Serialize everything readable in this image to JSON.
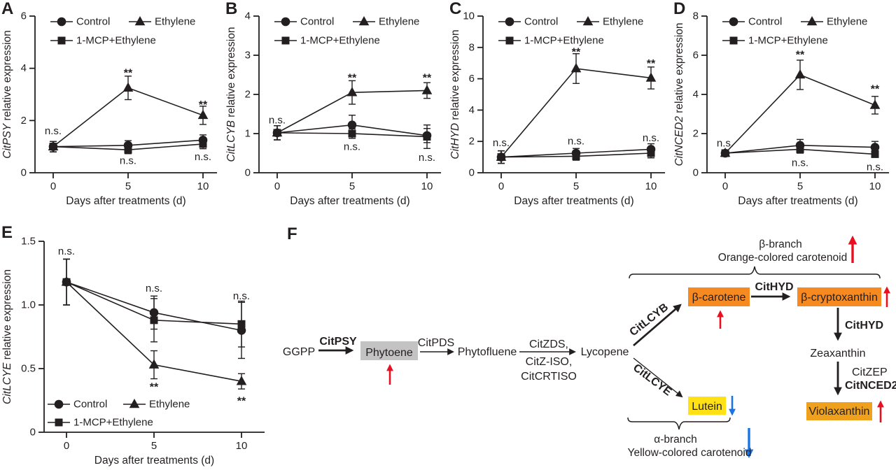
{
  "figure": {
    "background": "#ffffff",
    "panels": [
      "A",
      "B",
      "C",
      "D",
      "E",
      "F"
    ]
  },
  "chart_data": [
    {
      "panel": "A",
      "type": "line",
      "gene": "CitPSY",
      "ylabel_suffix": " relative expression",
      "xlabel": "Days after treatments (d)",
      "x": [
        0,
        5,
        10
      ],
      "ylim": [
        0,
        6
      ],
      "yticks": [
        0,
        2,
        4,
        6
      ],
      "ytick_labels": [
        "0",
        "2",
        "4",
        "6"
      ],
      "legend_pos": "top",
      "series": [
        {
          "name": "Control",
          "marker": "circle",
          "values": [
            1.0,
            1.05,
            1.25
          ],
          "errors": [
            0.2,
            0.18,
            0.2
          ]
        },
        {
          "name": "Ethylene",
          "marker": "triangle",
          "values": [
            1.0,
            3.25,
            2.2
          ],
          "errors": [
            0.2,
            0.45,
            0.35
          ]
        },
        {
          "name": "1-MCP+Ethylene",
          "marker": "square",
          "values": [
            1.0,
            0.88,
            1.1
          ],
          "errors": [
            0.2,
            0.15,
            0.18
          ]
        }
      ],
      "annotations": [
        {
          "x": 0,
          "y": 1.6,
          "text": "n.s."
        },
        {
          "x": 5,
          "y": 3.85,
          "text": "**"
        },
        {
          "x": 5,
          "y": 0.45,
          "text": "n.s."
        },
        {
          "x": 10,
          "y": 2.62,
          "text": "**"
        },
        {
          "x": 10,
          "y": 0.6,
          "text": "n.s."
        }
      ]
    },
    {
      "panel": "B",
      "type": "line",
      "gene": "CitLCYB",
      "ylabel_suffix": " relative expression",
      "xlabel": "Days after treatments (d)",
      "x": [
        0,
        5,
        10
      ],
      "ylim": [
        0,
        4
      ],
      "yticks": [
        0,
        1,
        2,
        3,
        4
      ],
      "ytick_labels": [
        "0",
        "1",
        "2",
        "3",
        "4"
      ],
      "legend_pos": "top",
      "series": [
        {
          "name": "Control",
          "marker": "circle",
          "values": [
            1.02,
            1.22,
            0.95
          ],
          "errors": [
            0.18,
            0.25,
            0.18
          ]
        },
        {
          "name": "Ethylene",
          "marker": "triangle",
          "values": [
            1.02,
            2.05,
            2.1
          ],
          "errors": [
            0.18,
            0.3,
            0.2
          ]
        },
        {
          "name": "1-MCP+Ethylene",
          "marker": "square",
          "values": [
            1.02,
            1.0,
            0.92
          ],
          "errors": [
            0.18,
            0.12,
            0.3
          ]
        }
      ],
      "annotations": [
        {
          "x": 0,
          "y": 1.34,
          "text": "n.s."
        },
        {
          "x": 5,
          "y": 2.44,
          "text": "**"
        },
        {
          "x": 5,
          "y": 0.66,
          "text": "n.s."
        },
        {
          "x": 10,
          "y": 2.44,
          "text": "**"
        },
        {
          "x": 10,
          "y": 0.38,
          "text": "n.s."
        }
      ]
    },
    {
      "panel": "C",
      "type": "line",
      "gene": "CitHYD",
      "ylabel_suffix": " relative expression",
      "xlabel": "Days after treatments (d)",
      "x": [
        0,
        5,
        10
      ],
      "ylim": [
        0,
        10
      ],
      "yticks": [
        0,
        2,
        4,
        6,
        8,
        10
      ],
      "ytick_labels": [
        "0",
        "2",
        "4",
        "6",
        "8",
        "10"
      ],
      "legend_pos": "top",
      "series": [
        {
          "name": "Control",
          "marker": "circle",
          "values": [
            1.0,
            1.25,
            1.5
          ],
          "errors": [
            0.4,
            0.3,
            0.35
          ]
        },
        {
          "name": "Ethylene",
          "marker": "triangle",
          "values": [
            1.0,
            6.65,
            6.05
          ],
          "errors": [
            0.4,
            0.95,
            0.7
          ]
        },
        {
          "name": "1-MCP+Ethylene",
          "marker": "square",
          "values": [
            1.0,
            1.05,
            1.25
          ],
          "errors": [
            0.4,
            0.25,
            0.3
          ]
        }
      ],
      "annotations": [
        {
          "x": 0,
          "y": 1.9,
          "text": "n.s."
        },
        {
          "x": 5,
          "y": 7.75,
          "text": "**"
        },
        {
          "x": 5,
          "y": 2.0,
          "text": "n.s."
        },
        {
          "x": 10,
          "y": 7.0,
          "text": "**"
        },
        {
          "x": 10,
          "y": 2.2,
          "text": "n.s."
        }
      ]
    },
    {
      "panel": "D",
      "type": "line",
      "gene": "CitNCED2",
      "ylabel_suffix": " relative expression",
      "xlabel": "Days after treatments (d)",
      "x": [
        0,
        5,
        10
      ],
      "ylim": [
        0,
        8
      ],
      "yticks": [
        0,
        2,
        4,
        6,
        8
      ],
      "ytick_labels": [
        "0",
        "2",
        "4",
        "6",
        "8"
      ],
      "legend_pos": "top",
      "series": [
        {
          "name": "Control",
          "marker": "circle",
          "values": [
            1.0,
            1.4,
            1.3
          ],
          "errors": [
            0.15,
            0.3,
            0.3
          ]
        },
        {
          "name": "Ethylene",
          "marker": "triangle",
          "values": [
            1.0,
            5.0,
            3.45
          ],
          "errors": [
            0.15,
            0.75,
            0.45
          ]
        },
        {
          "name": "1-MCP+Ethylene",
          "marker": "square",
          "values": [
            1.0,
            1.2,
            0.95
          ],
          "errors": [
            0.15,
            0.2,
            0.15
          ]
        }
      ],
      "annotations": [
        {
          "x": 0,
          "y": 1.5,
          "text": "n.s."
        },
        {
          "x": 5,
          "y": 6.05,
          "text": "**"
        },
        {
          "x": 5,
          "y": 0.5,
          "text": "n.s."
        },
        {
          "x": 10,
          "y": 4.3,
          "text": "**"
        },
        {
          "x": 10,
          "y": 0.28,
          "text": "n.s."
        }
      ]
    },
    {
      "panel": "E",
      "type": "line",
      "gene": "CitLCYE",
      "ylabel_suffix": " relative expression",
      "xlabel": "Days after treatments (d)",
      "x": [
        0,
        5,
        10
      ],
      "ylim": [
        0,
        1.5
      ],
      "yticks": [
        0,
        0.5,
        1,
        1.5
      ],
      "ytick_labels": [
        "0",
        "0.5",
        "1.0",
        "1.5"
      ],
      "legend_pos": "bottom",
      "series": [
        {
          "name": "Control",
          "marker": "circle",
          "values": [
            1.18,
            0.94,
            0.8
          ],
          "errors": [
            0.18,
            0.13,
            0.22
          ]
        },
        {
          "name": "Ethylene",
          "marker": "triangle",
          "values": [
            1.18,
            0.53,
            0.4
          ],
          "errors": [
            0.18,
            0.11,
            0.06
          ]
        },
        {
          "name": "1-MCP+Ethylene",
          "marker": "square",
          "values": [
            1.18,
            0.88,
            0.85
          ],
          "errors": [
            0.18,
            0.17,
            0.18
          ]
        }
      ],
      "annotations": [
        {
          "x": 0,
          "y": 1.42,
          "text": "n.s."
        },
        {
          "x": 5,
          "y": 1.13,
          "text": "n.s."
        },
        {
          "x": 5,
          "y": 0.36,
          "text": "**"
        },
        {
          "x": 10,
          "y": 1.07,
          "text": "n.s."
        },
        {
          "x": 10,
          "y": 0.25,
          "text": "**"
        }
      ]
    }
  ],
  "diagram": {
    "nodes": {
      "ggpp": "GGPP",
      "phytoene": "Phytoene",
      "phytofluene": "Phytofluene",
      "lycopene": "Lycopene",
      "beta_carotene": "β-carotene",
      "beta_cryptoxanthin": "β-cryptoxanthin",
      "zeaxanthin": "Zeaxanthin",
      "violaxanthin": "Violaxanthin",
      "lutein": "Lutein"
    },
    "enzymes": {
      "citpsy": "CitPSY",
      "citpds": "CitPDS",
      "citzds": "CitZDS,",
      "citziso": "CitZ-ISO,",
      "citcrtiso": "CitCRTISO",
      "citlcyb": "CitLCYB",
      "citlcye": "CitLCYE",
      "cithyd1": "CitHYD",
      "cithyd2": "CitHYD",
      "citzep": "CitZEP",
      "citnced2": "CitNCED2"
    },
    "branch_labels": {
      "beta_line1": "β-branch",
      "beta_line2": "Orange-colored carotenoid",
      "alpha_line1": "α-branch",
      "alpha_line2": "Yellow-colored carotenoid"
    },
    "colors": {
      "red": "#e8101f",
      "blue": "#1b74e0",
      "orange": "#f6891f",
      "amber": "#efa11d",
      "yellow": "#ffe115",
      "gray": "#c3c3c3",
      "ink": "#231f20"
    }
  }
}
